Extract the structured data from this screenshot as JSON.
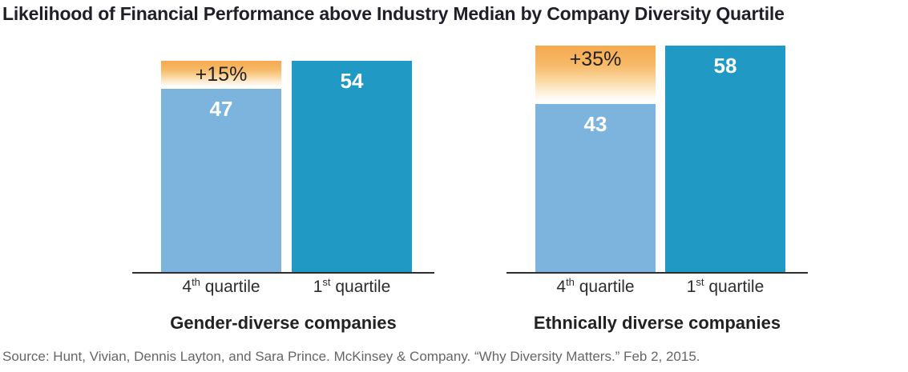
{
  "title": "Likelihood of Financial Performance above Industry Median by Company Diversity Quartile",
  "source": "Source: Hunt, Vivian, Dennis Layton, and Sara Prince. McKinsey & Company. “Why Diversity Matters.” Feb 2, 2015.",
  "colors": {
    "bar_4th_quartile": "#7CB4DD",
    "bar_1st_quartile": "#2199C5",
    "delta_cap_orange": "#F5A94F",
    "axis_line": "#2e2e2e",
    "title_text": "#1f1f28",
    "source_text": "#666666",
    "value_label_text": "#ffffff",
    "delta_label_text": "#222222"
  },
  "tick_parts": [
    {
      "num": "4",
      "sup": "th",
      "rest": " quartile"
    },
    {
      "num": "1",
      "sup": "st",
      "rest": " quartile"
    }
  ],
  "chart_data": [
    {
      "type": "bar",
      "title": "Gender-diverse companies",
      "categories": [
        "4th quartile",
        "1st quartile"
      ],
      "values": [
        47,
        54
      ],
      "delta_label": "+15%",
      "legend": "none",
      "grid": false,
      "value_labels_inside_bars": true
    },
    {
      "type": "bar",
      "title": "Ethnically diverse companies",
      "categories": [
        "4th quartile",
        "1st quartile"
      ],
      "values": [
        43,
        58
      ],
      "delta_label": "+35%",
      "legend": "none",
      "grid": false,
      "value_labels_inside_bars": true
    }
  ]
}
